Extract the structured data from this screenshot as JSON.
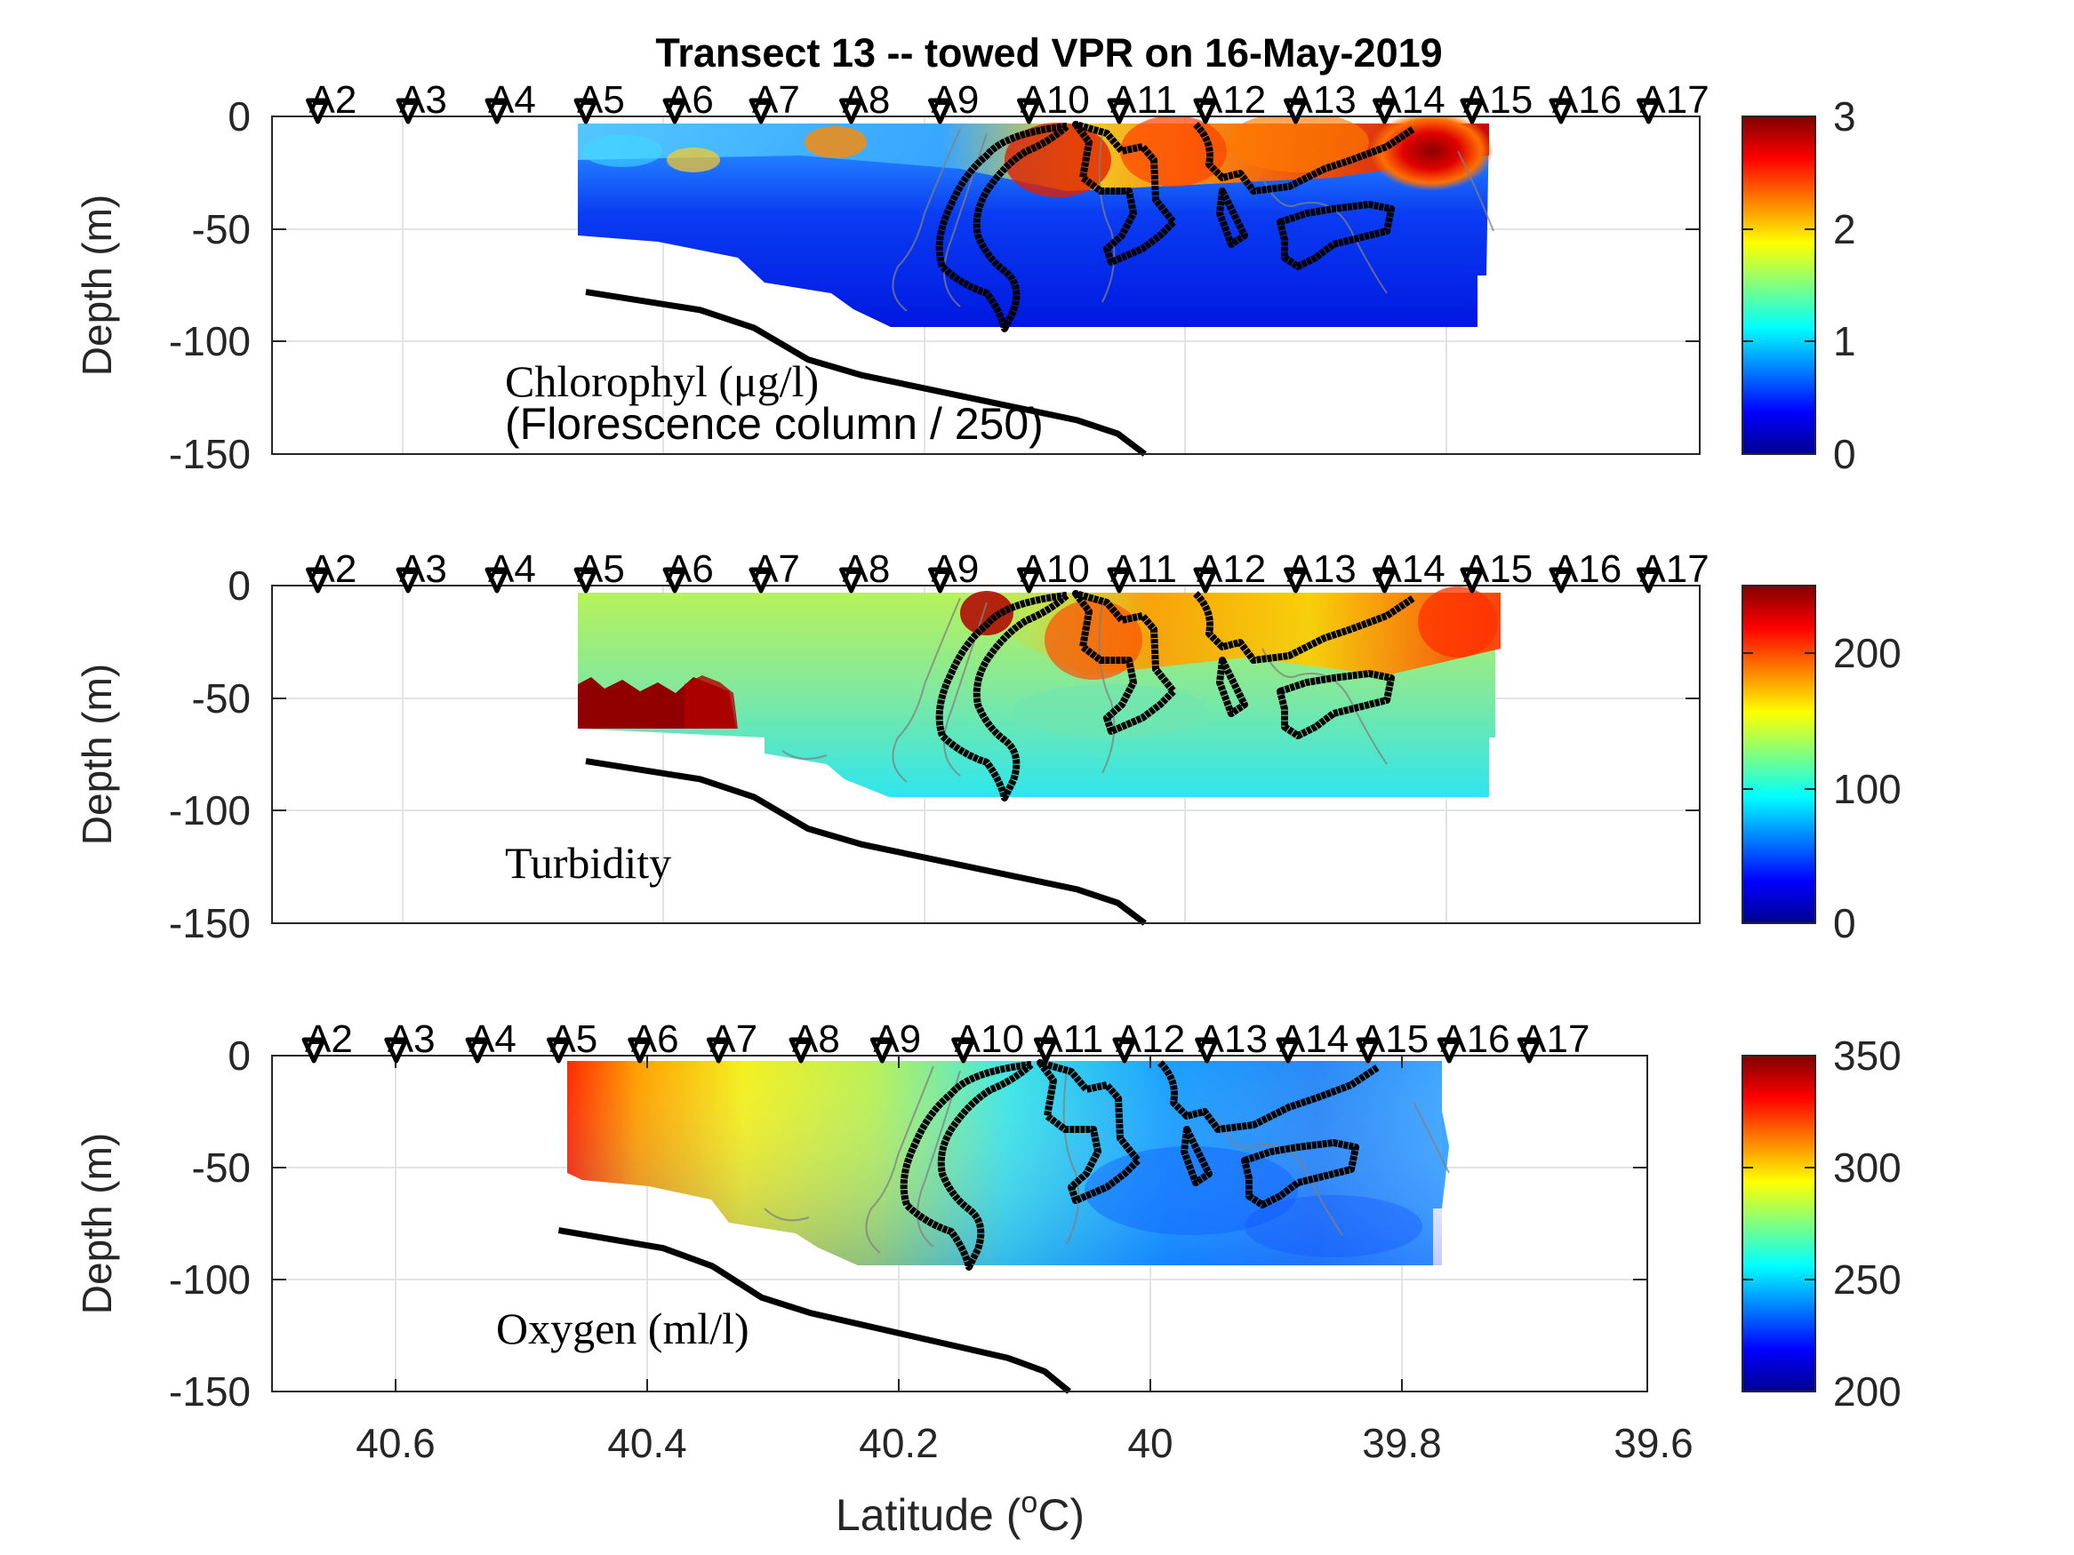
{
  "title": "Transect 13 -- towed VPR on 16-May-2019",
  "xlabel": "Latitude (",
  "xlabel_sup": "o",
  "xlabel_end": "C)",
  "colors": {
    "jet": [
      "#00008f",
      "#0000ff",
      "#00ffff",
      "#ffff00",
      "#ff0000",
      "#800000"
    ],
    "contour_black": "#000000",
    "contour_gray": "#808080",
    "bathymetry": "#000000"
  },
  "chart_data": [
    {
      "type": "heatmap",
      "name": "chlorophyll",
      "ylabel": "Depth (m)",
      "label_line1": "Chlorophyl (μg/l)",
      "label_line2": "(Florescence column / 250)",
      "ylim": [
        -150,
        0
      ],
      "yticks": [
        0,
        -50,
        -100,
        -150
      ],
      "xlim": [
        40.718,
        39.658
      ],
      "xticks_shown": false,
      "colorbar": {
        "ticks": [
          0,
          1,
          2,
          3
        ],
        "range": [
          0,
          3
        ]
      },
      "stations": [
        {
          "name": "A2",
          "lat": 40.684
        },
        {
          "name": "A3",
          "lat": 40.617
        },
        {
          "name": "A4",
          "lat": 40.551
        },
        {
          "name": "A5",
          "lat": 40.485
        },
        {
          "name": "A6",
          "lat": 40.419
        },
        {
          "name": "A7",
          "lat": 40.355
        },
        {
          "name": "A8",
          "lat": 40.288
        },
        {
          "name": "A9",
          "lat": 40.222
        },
        {
          "name": "A10",
          "lat": 40.156
        },
        {
          "name": "A11",
          "lat": 40.089
        },
        {
          "name": "A12",
          "lat": 40.025
        },
        {
          "name": "A13",
          "lat": 39.958
        },
        {
          "name": "A14",
          "lat": 39.892
        },
        {
          "name": "A15",
          "lat": 39.827
        },
        {
          "name": "A16",
          "lat": 39.761
        },
        {
          "name": "A17",
          "lat": 39.696
        }
      ],
      "bathymetry": [
        [
          40.485,
          -78
        ],
        [
          40.4,
          -86
        ],
        [
          40.36,
          -94
        ],
        [
          40.32,
          -108
        ],
        [
          40.28,
          -115
        ],
        [
          40.2,
          -125
        ],
        [
          40.12,
          -135
        ],
        [
          40.09,
          -141
        ],
        [
          40.07,
          -150
        ]
      ]
    },
    {
      "type": "heatmap",
      "name": "turbidity",
      "ylabel": "Depth (m)",
      "label_line1": "Turbidity",
      "ylim": [
        -150,
        0
      ],
      "yticks": [
        0,
        -50,
        -100,
        -150
      ],
      "xlim": [
        40.718,
        39.658
      ],
      "xticks_shown": false,
      "colorbar": {
        "ticks": [
          0,
          100,
          200
        ],
        "range": [
          0,
          250
        ]
      },
      "stations": [
        {
          "name": "A2",
          "lat": 40.684
        },
        {
          "name": "A3",
          "lat": 40.617
        },
        {
          "name": "A4",
          "lat": 40.551
        },
        {
          "name": "A5",
          "lat": 40.485
        },
        {
          "name": "A6",
          "lat": 40.419
        },
        {
          "name": "A7",
          "lat": 40.355
        },
        {
          "name": "A8",
          "lat": 40.288
        },
        {
          "name": "A9",
          "lat": 40.222
        },
        {
          "name": "A10",
          "lat": 40.156
        },
        {
          "name": "A11",
          "lat": 40.089
        },
        {
          "name": "A12",
          "lat": 40.025
        },
        {
          "name": "A13",
          "lat": 39.958
        },
        {
          "name": "A14",
          "lat": 39.892
        },
        {
          "name": "A15",
          "lat": 39.827
        },
        {
          "name": "A16",
          "lat": 39.761
        },
        {
          "name": "A17",
          "lat": 39.696
        }
      ],
      "bathymetry": [
        [
          40.485,
          -78
        ],
        [
          40.4,
          -86
        ],
        [
          40.36,
          -94
        ],
        [
          40.32,
          -108
        ],
        [
          40.28,
          -115
        ],
        [
          40.2,
          -125
        ],
        [
          40.12,
          -135
        ],
        [
          40.09,
          -141
        ],
        [
          40.07,
          -150
        ]
      ]
    },
    {
      "type": "heatmap",
      "name": "oxygen",
      "ylabel": "Depth (m)",
      "label_line1": "Oxygen (ml/l)",
      "ylim": [
        -150,
        0
      ],
      "yticks": [
        0,
        -50,
        -100,
        -150
      ],
      "xlim": [
        40.718,
        39.6
      ],
      "xticks": [
        40.6,
        40.4,
        40.2,
        40,
        39.8,
        39.6
      ],
      "xticks_shown": true,
      "colorbar": {
        "ticks": [
          200,
          250,
          300,
          350
        ],
        "range": [
          200,
          350
        ]
      },
      "stations": [
        {
          "name": "A2",
          "lat": 40.684
        },
        {
          "name": "A3",
          "lat": 40.617
        },
        {
          "name": "A4",
          "lat": 40.551
        },
        {
          "name": "A5",
          "lat": 40.485
        },
        {
          "name": "A6",
          "lat": 40.419
        },
        {
          "name": "A7",
          "lat": 40.355
        },
        {
          "name": "A8",
          "lat": 40.288
        },
        {
          "name": "A9",
          "lat": 40.222
        },
        {
          "name": "A10",
          "lat": 40.156
        },
        {
          "name": "A11",
          "lat": 40.089
        },
        {
          "name": "A12",
          "lat": 40.025
        },
        {
          "name": "A13",
          "lat": 39.958
        },
        {
          "name": "A14",
          "lat": 39.892
        },
        {
          "name": "A15",
          "lat": 39.827
        },
        {
          "name": "A16",
          "lat": 39.761
        },
        {
          "name": "A17",
          "lat": 39.696
        }
      ],
      "bathymetry": [
        [
          40.485,
          -78
        ],
        [
          40.4,
          -86
        ],
        [
          40.36,
          -94
        ],
        [
          40.32,
          -108
        ],
        [
          40.28,
          -115
        ],
        [
          40.2,
          -125
        ],
        [
          40.12,
          -135
        ],
        [
          40.09,
          -141
        ],
        [
          40.07,
          -150
        ]
      ]
    }
  ]
}
